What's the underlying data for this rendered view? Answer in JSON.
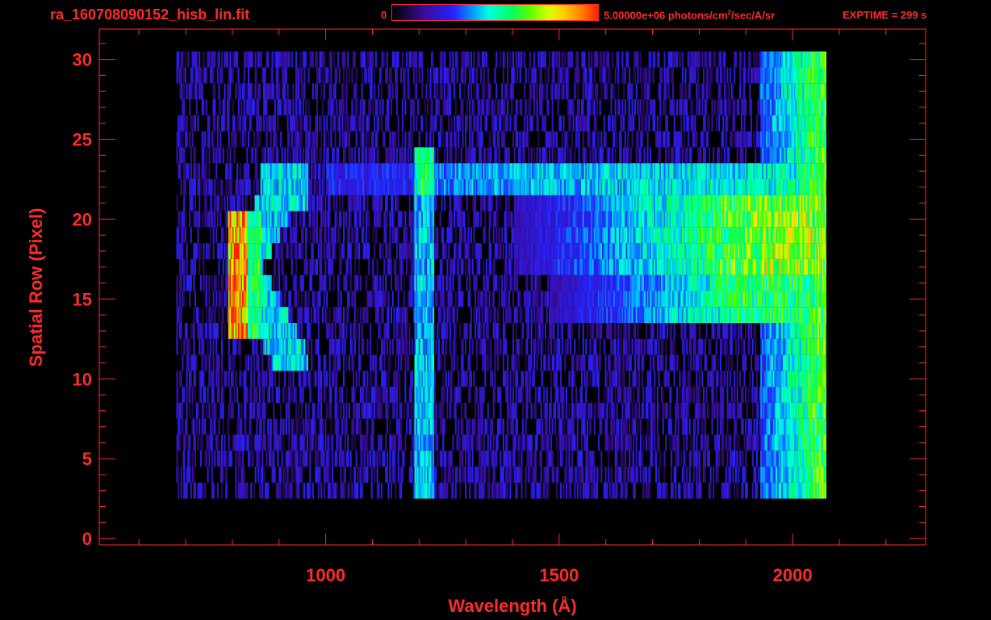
{
  "header": {
    "filename": "ra_160708090152_hisb_lin.fit",
    "colorbar_min": "0",
    "colorbar_max_pre": "5.00000e+06 photons/cm",
    "colorbar_max_sup": "2",
    "colorbar_max_post": "/sec/A/sr",
    "exptime": "EXPTIME = 299 s"
  },
  "colors": {
    "axis": "#ff2a2a",
    "background": "#000000"
  },
  "chart_data": {
    "type": "heatmap",
    "xlabel": "Wavelength (Å)",
    "ylabel": "Spatial Row (Pixel)",
    "xlim": [
      515,
      2285
    ],
    "ylim": [
      -0.4,
      31.9
    ],
    "x_ticks": [
      1000,
      1500,
      2000
    ],
    "x_tick_labels": [
      "1000",
      "1500",
      "2000"
    ],
    "y_ticks": [
      0,
      5,
      10,
      15,
      20,
      25,
      30
    ],
    "y_tick_labels": [
      "0",
      "5",
      "10",
      "15",
      "20",
      "25",
      "30"
    ],
    "x_minor_step": 100,
    "y_minor_step": 1,
    "data_extent": {
      "x": [
        680,
        2070
      ],
      "rows": [
        3,
        30
      ]
    },
    "color_scale": {
      "min": 0,
      "max": 5000000,
      "units": "photons/cm^2/sec/A/sr"
    },
    "features": [
      {
        "name": "bright-band-upper",
        "x": [
          1220,
          2070
        ],
        "rows": [
          22,
          23
        ],
        "level": 0.5
      },
      {
        "name": "bright-band-middle",
        "x": [
          1650,
          2060
        ],
        "rows": [
          17,
          21
        ],
        "level": 0.6
      },
      {
        "name": "bright-band-lower",
        "x": [
          1700,
          2060
        ],
        "rows": [
          14,
          16
        ],
        "level": 0.5
      },
      {
        "name": "left-arc-peak",
        "x": [
          790,
          830
        ],
        "rows": [
          13,
          20
        ],
        "level": 0.95
      },
      {
        "name": "vertical-line-lyman-alpha",
        "x": [
          1190,
          1230
        ],
        "rows": [
          3,
          24
        ],
        "level": 0.45
      }
    ]
  }
}
